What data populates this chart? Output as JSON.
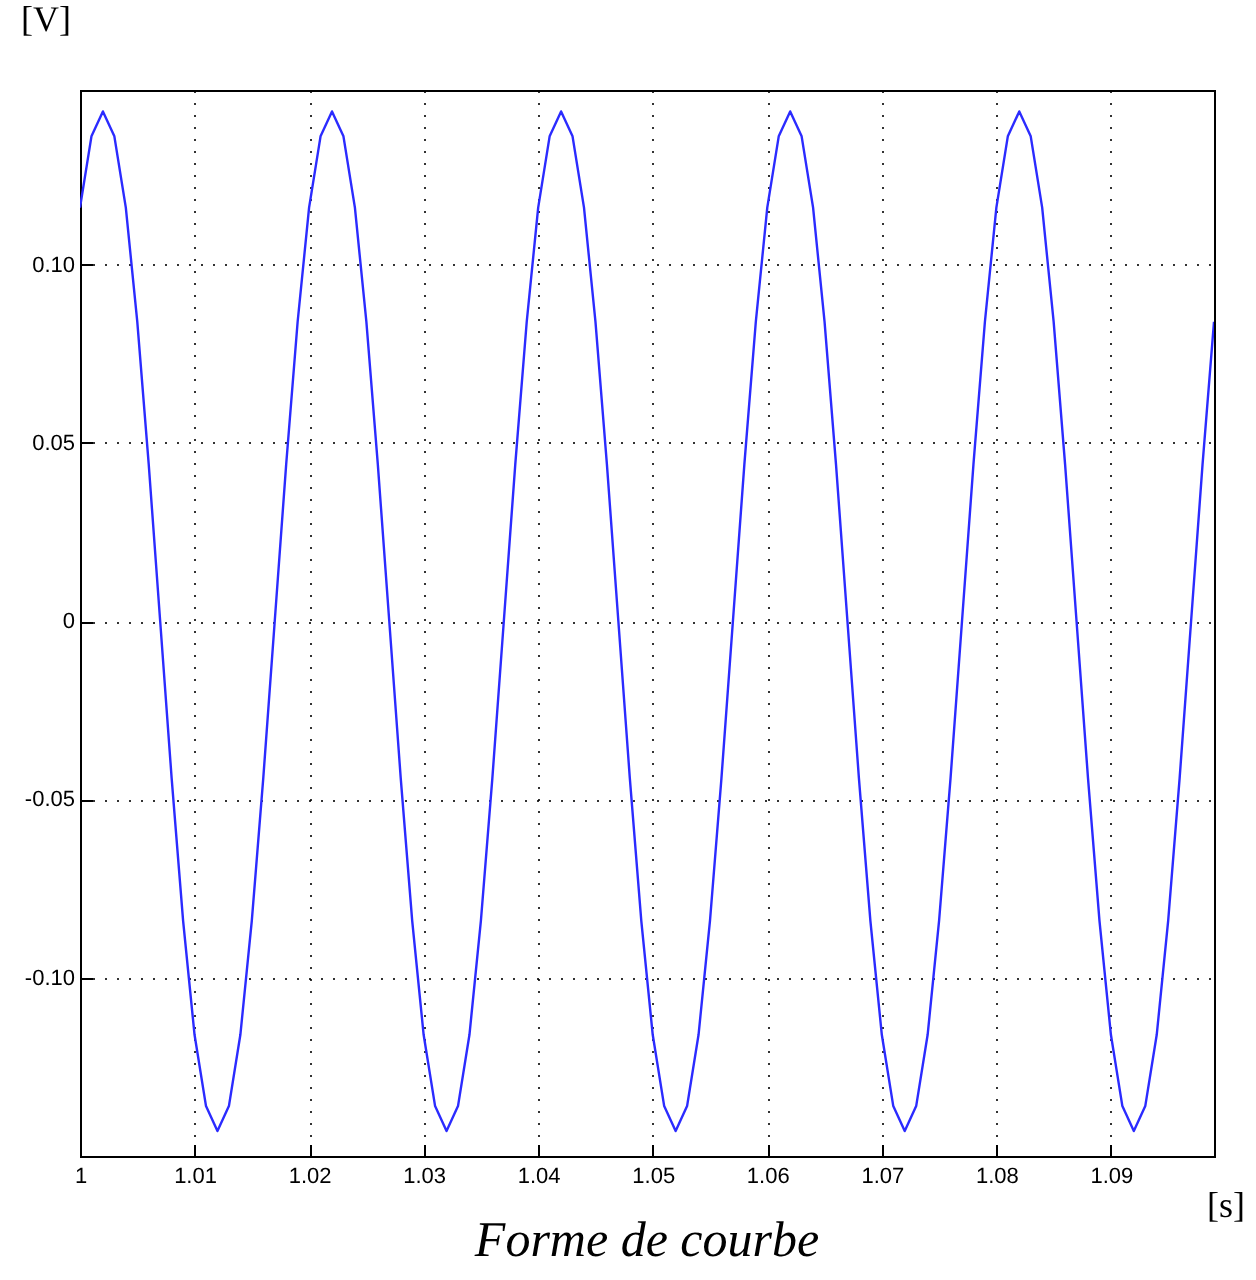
{
  "chart_data": {
    "type": "line",
    "title": "Forme de courbe",
    "xlabel": "[s]",
    "ylabel": "[V]",
    "x": [
      1.0,
      1.001,
      1.002,
      1.003,
      1.004,
      1.005,
      1.006,
      1.007,
      1.008,
      1.009,
      1.01,
      1.011,
      1.012,
      1.013,
      1.014,
      1.015,
      1.016,
      1.017,
      1.018,
      1.019,
      1.02,
      1.021,
      1.022,
      1.023,
      1.024,
      1.025,
      1.026,
      1.027,
      1.028,
      1.029,
      1.03,
      1.031,
      1.032,
      1.033,
      1.034,
      1.035,
      1.036,
      1.037,
      1.038,
      1.039,
      1.04,
      1.041,
      1.042,
      1.043,
      1.044,
      1.045,
      1.046,
      1.047,
      1.048,
      1.049,
      1.05,
      1.051,
      1.052,
      1.053,
      1.054,
      1.055,
      1.056,
      1.057,
      1.058,
      1.059,
      1.06,
      1.061,
      1.062,
      1.063,
      1.064,
      1.065,
      1.066,
      1.067,
      1.068,
      1.069,
      1.07,
      1.071,
      1.072,
      1.073,
      1.074,
      1.075,
      1.076,
      1.077,
      1.078,
      1.079,
      1.08,
      1.081,
      1.082,
      1.083,
      1.084,
      1.085,
      1.086,
      1.087,
      1.088,
      1.089,
      1.09,
      1.091,
      1.092,
      1.093,
      1.094,
      1.095,
      1.096,
      1.097,
      1.098,
      1.099
    ],
    "series": [
      {
        "color": "#2b2bff",
        "values": [
          0.116,
          0.136,
          0.143,
          0.136,
          0.116,
          0.084,
          0.044,
          0,
          -0.044,
          -0.084,
          -0.116,
          -0.136,
          -0.143,
          -0.136,
          -0.116,
          -0.084,
          -0.044,
          0,
          0.044,
          0.084,
          0.116,
          0.136,
          0.143,
          0.136,
          0.116,
          0.084,
          0.044,
          0,
          -0.044,
          -0.084,
          -0.116,
          -0.136,
          -0.143,
          -0.136,
          -0.116,
          -0.084,
          -0.044,
          0,
          0.044,
          0.084,
          0.116,
          0.136,
          0.143,
          0.136,
          0.116,
          0.084,
          0.044,
          0,
          -0.044,
          -0.084,
          -0.116,
          -0.136,
          -0.143,
          -0.136,
          -0.116,
          -0.084,
          -0.044,
          0,
          0.044,
          0.084,
          0.116,
          0.136,
          0.143,
          0.136,
          0.116,
          0.084,
          0.044,
          0,
          -0.044,
          -0.084,
          -0.116,
          -0.136,
          -0.143,
          -0.136,
          -0.116,
          -0.084,
          -0.044,
          0,
          0.044,
          0.084,
          0.116,
          0.136,
          0.143,
          0.136,
          0.116,
          0.084,
          0.044,
          0,
          -0.044,
          -0.084,
          -0.116,
          -0.136,
          -0.143,
          -0.136,
          -0.116,
          -0.084,
          -0.044,
          0,
          0.044,
          0.084
        ]
      }
    ],
    "xlim": [
      1,
      1.099
    ],
    "xticks": [
      1,
      1.01,
      1.02,
      1.03,
      1.04,
      1.05,
      1.06,
      1.07,
      1.08,
      1.09
    ],
    "ylim": [
      -0.15,
      0.149
    ],
    "yticks": [
      {
        "value": -0.1,
        "label": "-0.10"
      },
      {
        "value": -0.05,
        "label": "-0.05"
      },
      0,
      {
        "value": 0.05,
        "label": "0.05"
      },
      {
        "value": 0.1,
        "label": "0.10"
      }
    ],
    "grid": true,
    "line_style": "solid",
    "marker": "none"
  }
}
